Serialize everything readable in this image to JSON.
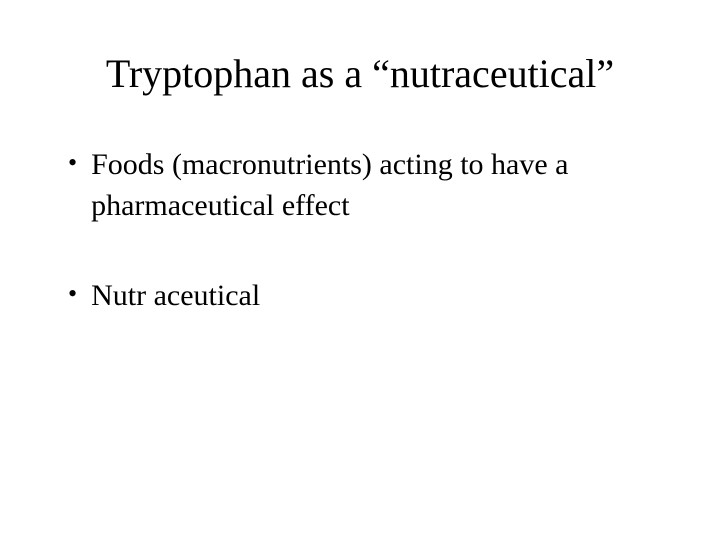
{
  "slide": {
    "title": "Tryptophan as a “nutraceutical”",
    "title_fontsize": 40,
    "title_color": "#000000",
    "body_fontsize": 30,
    "body_color": "#000000",
    "background_color": "#ffffff",
    "font_family": "Times New Roman",
    "bullets": [
      {
        "text": "Foods (macronutrients)  acting to have a pharmaceutical effect"
      },
      {
        "text": "Nutr aceutical"
      }
    ],
    "bullet_marker": "•"
  }
}
